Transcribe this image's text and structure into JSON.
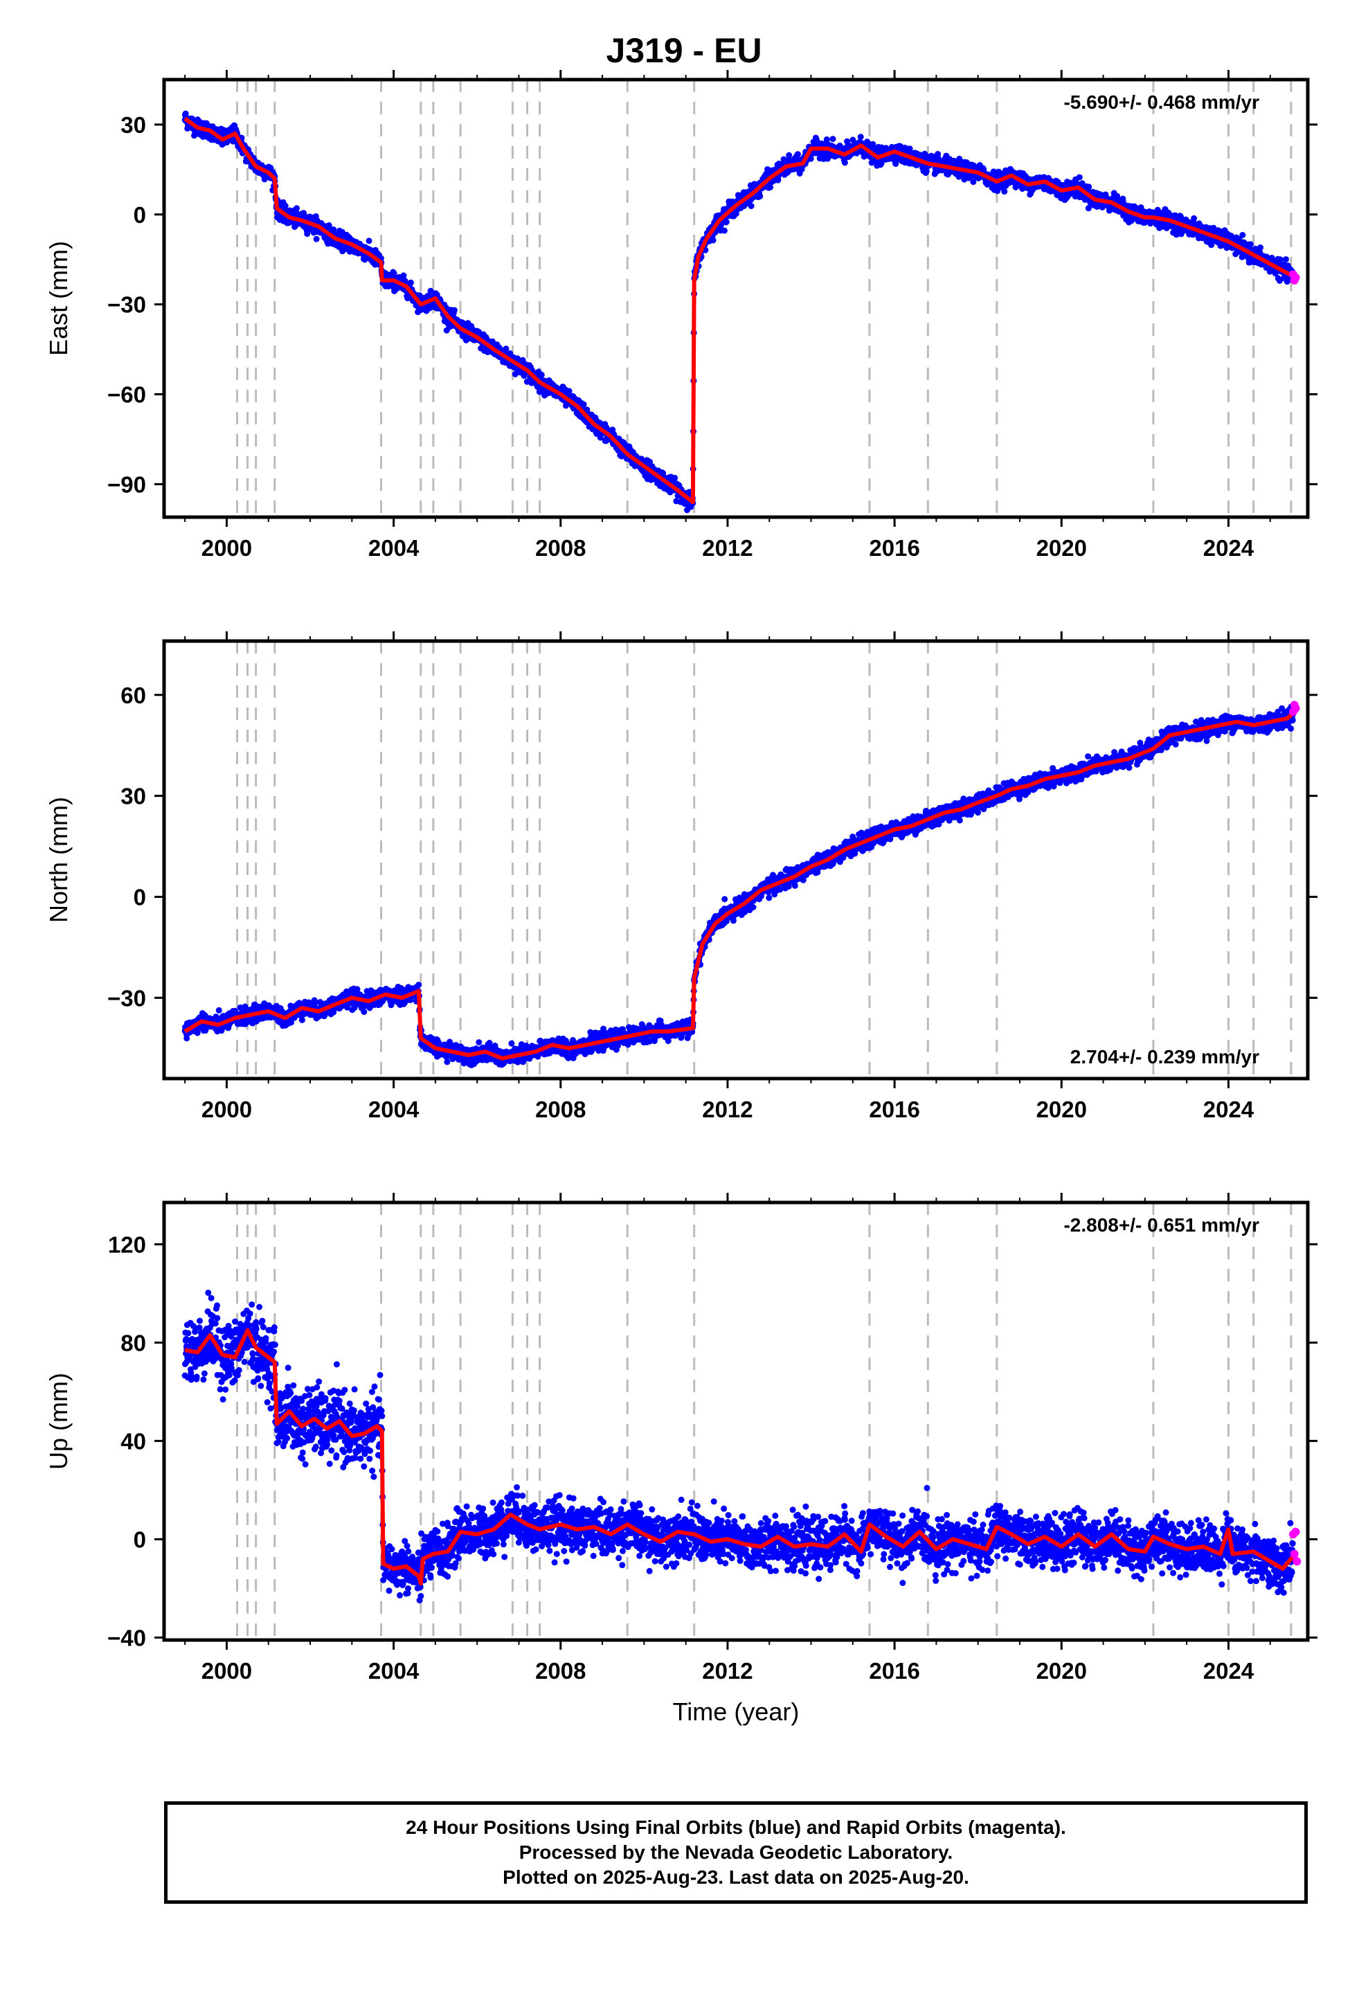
{
  "title": "J319 - EU",
  "colors": {
    "final_points": "#0000ff",
    "rapid_points": "#ff00ff",
    "model_line": "#ff0000",
    "event_lines": "#bbbbbb",
    "frame": "#000000"
  },
  "footer": {
    "line1": "24 Hour Positions Using Final Orbits (blue) and Rapid Orbits (magenta).",
    "line2": "Processed by the Nevada Geodetic Laboratory.",
    "line3": "Plotted on 2025-Aug-23. Last data on 2025-Aug-20."
  },
  "chart_data": [
    {
      "type": "scatter",
      "panel": "east",
      "ylabel": "East (mm)",
      "xlabel": "",
      "rate_text": "-5.690+/- 0.468 mm/yr",
      "rate_position": "top-right",
      "xlim": [
        1998.5,
        2025.9
      ],
      "ylim": [
        -101,
        45
      ],
      "xticks": [
        2000,
        2004,
        2008,
        2012,
        2016,
        2020,
        2024
      ],
      "yticks": [
        30,
        0,
        -30,
        -60,
        -90
      ],
      "ytick_labels": [
        "30",
        "0",
        "−30",
        "−60",
        "−90"
      ],
      "event_lines": [
        2000.25,
        2000.5,
        2000.7,
        2001.15,
        2003.7,
        2004.65,
        2004.95,
        2005.6,
        2006.85,
        2007.2,
        2007.5,
        2009.6,
        2011.2,
        2015.4,
        2016.8,
        2018.45,
        2022.2,
        2024.0,
        2024.6,
        2025.5
      ],
      "model_line": [
        [
          1999.0,
          32
        ],
        [
          1999.3,
          29
        ],
        [
          1999.6,
          28
        ],
        [
          1999.9,
          25
        ],
        [
          2000.2,
          27
        ],
        [
          2000.4,
          22
        ],
        [
          2000.7,
          16
        ],
        [
          2001.0,
          14
        ],
        [
          2001.15,
          12
        ],
        [
          2001.2,
          2
        ],
        [
          2001.5,
          -1
        ],
        [
          2001.8,
          -2
        ],
        [
          2002.2,
          -4
        ],
        [
          2002.6,
          -8
        ],
        [
          2003.0,
          -10
        ],
        [
          2003.4,
          -13
        ],
        [
          2003.7,
          -16
        ],
        [
          2003.72,
          -22
        ],
        [
          2004.0,
          -22
        ],
        [
          2004.3,
          -24
        ],
        [
          2004.65,
          -30
        ],
        [
          2005.0,
          -28
        ],
        [
          2005.3,
          -34
        ],
        [
          2005.6,
          -38
        ],
        [
          2006.0,
          -41
        ],
        [
          2006.4,
          -45
        ],
        [
          2006.85,
          -49
        ],
        [
          2007.2,
          -52
        ],
        [
          2007.5,
          -56
        ],
        [
          2008.0,
          -60
        ],
        [
          2008.4,
          -64
        ],
        [
          2008.8,
          -70
        ],
        [
          2009.2,
          -74
        ],
        [
          2009.6,
          -80
        ],
        [
          2010.0,
          -84
        ],
        [
          2010.4,
          -88
        ],
        [
          2010.8,
          -92
        ],
        [
          2011.17,
          -96
        ],
        [
          2011.2,
          -22
        ],
        [
          2011.3,
          -14
        ],
        [
          2011.5,
          -8
        ],
        [
          2011.8,
          -2
        ],
        [
          2012.2,
          3
        ],
        [
          2012.6,
          7
        ],
        [
          2013.0,
          12
        ],
        [
          2013.4,
          16
        ],
        [
          2013.8,
          17
        ],
        [
          2014.0,
          22
        ],
        [
          2014.4,
          22
        ],
        [
          2014.8,
          20
        ],
        [
          2015.2,
          23
        ],
        [
          2015.6,
          19
        ],
        [
          2016.0,
          21
        ],
        [
          2016.4,
          19
        ],
        [
          2016.8,
          17
        ],
        [
          2017.2,
          16
        ],
        [
          2017.6,
          15
        ],
        [
          2018.0,
          14
        ],
        [
          2018.45,
          11
        ],
        [
          2018.8,
          13
        ],
        [
          2019.2,
          10
        ],
        [
          2019.6,
          11
        ],
        [
          2020.0,
          8
        ],
        [
          2020.4,
          9
        ],
        [
          2020.8,
          5
        ],
        [
          2021.2,
          4
        ],
        [
          2021.6,
          1
        ],
        [
          2022.0,
          -1
        ],
        [
          2022.2,
          -1
        ],
        [
          2022.6,
          -2
        ],
        [
          2023.0,
          -4
        ],
        [
          2023.4,
          -6
        ],
        [
          2023.8,
          -8
        ],
        [
          2024.0,
          -9
        ],
        [
          2024.4,
          -12
        ],
        [
          2024.8,
          -15
        ],
        [
          2025.2,
          -18
        ],
        [
          2025.6,
          -21
        ]
      ],
      "rapid_points": [
        [
          2025.55,
          -20
        ],
        [
          2025.58,
          -22
        ],
        [
          2025.61,
          -21
        ]
      ]
    },
    {
      "type": "scatter",
      "panel": "north",
      "ylabel": "North (mm)",
      "xlabel": "",
      "rate_text": "2.704+/- 0.239 mm/yr",
      "rate_position": "bottom-right",
      "xlim": [
        1998.5,
        2025.9
      ],
      "ylim": [
        -54,
        76
      ],
      "xticks": [
        2000,
        2004,
        2008,
        2012,
        2016,
        2020,
        2024
      ],
      "yticks": [
        60,
        30,
        0,
        -30
      ],
      "ytick_labels": [
        "60",
        "30",
        "0",
        "−30"
      ],
      "event_lines": [
        2000.25,
        2000.5,
        2000.7,
        2001.15,
        2003.7,
        2004.65,
        2004.95,
        2005.6,
        2006.85,
        2007.2,
        2007.5,
        2009.6,
        2011.2,
        2015.4,
        2016.8,
        2018.45,
        2022.2,
        2024.0,
        2024.6,
        2025.5
      ],
      "model_line": [
        [
          1999.0,
          -40
        ],
        [
          1999.4,
          -37
        ],
        [
          1999.8,
          -38
        ],
        [
          2000.2,
          -36
        ],
        [
          2000.6,
          -35
        ],
        [
          2001.0,
          -34
        ],
        [
          2001.4,
          -36
        ],
        [
          2001.8,
          -33
        ],
        [
          2002.2,
          -34
        ],
        [
          2002.6,
          -32
        ],
        [
          2003.0,
          -30
        ],
        [
          2003.4,
          -31
        ],
        [
          2003.8,
          -29
        ],
        [
          2004.2,
          -30
        ],
        [
          2004.6,
          -28
        ],
        [
          2004.65,
          -42
        ],
        [
          2005.0,
          -45
        ],
        [
          2005.4,
          -46
        ],
        [
          2005.8,
          -47
        ],
        [
          2006.2,
          -46
        ],
        [
          2006.6,
          -48
        ],
        [
          2007.0,
          -47
        ],
        [
          2007.4,
          -46
        ],
        [
          2007.8,
          -44
        ],
        [
          2008.2,
          -45
        ],
        [
          2008.6,
          -44
        ],
        [
          2009.0,
          -43
        ],
        [
          2009.4,
          -42
        ],
        [
          2009.8,
          -41
        ],
        [
          2010.2,
          -40
        ],
        [
          2010.6,
          -40
        ],
        [
          2011.17,
          -39
        ],
        [
          2011.2,
          -24
        ],
        [
          2011.4,
          -14
        ],
        [
          2011.7,
          -8
        ],
        [
          2012.0,
          -5
        ],
        [
          2012.4,
          -2
        ],
        [
          2012.8,
          2
        ],
        [
          2013.2,
          4
        ],
        [
          2013.6,
          6
        ],
        [
          2014.0,
          9
        ],
        [
          2014.4,
          11
        ],
        [
          2014.8,
          14
        ],
        [
          2015.2,
          16
        ],
        [
          2015.6,
          18
        ],
        [
          2016.0,
          20
        ],
        [
          2016.4,
          21
        ],
        [
          2016.8,
          23
        ],
        [
          2017.2,
          25
        ],
        [
          2017.6,
          26
        ],
        [
          2018.0,
          28
        ],
        [
          2018.45,
          30
        ],
        [
          2018.8,
          32
        ],
        [
          2019.2,
          33
        ],
        [
          2019.6,
          35
        ],
        [
          2020.0,
          36
        ],
        [
          2020.4,
          37
        ],
        [
          2020.8,
          39
        ],
        [
          2021.2,
          40
        ],
        [
          2021.6,
          41
        ],
        [
          2022.0,
          43
        ],
        [
          2022.2,
          44
        ],
        [
          2022.6,
          48
        ],
        [
          2023.0,
          49
        ],
        [
          2023.4,
          50
        ],
        [
          2023.8,
          51
        ],
        [
          2024.2,
          52
        ],
        [
          2024.6,
          51
        ],
        [
          2025.0,
          52
        ],
        [
          2025.4,
          53
        ],
        [
          2025.6,
          55
        ]
      ],
      "rapid_points": [
        [
          2025.55,
          55
        ],
        [
          2025.58,
          57
        ],
        [
          2025.61,
          56
        ]
      ]
    },
    {
      "type": "scatter",
      "panel": "up",
      "ylabel": "Up (mm)",
      "xlabel": "Time (year)",
      "rate_text": "-2.808+/- 0.651 mm/yr",
      "rate_position": "top-right",
      "xlim": [
        1998.5,
        2025.9
      ],
      "ylim": [
        -41,
        137
      ],
      "xticks": [
        2000,
        2004,
        2008,
        2012,
        2016,
        2020,
        2024
      ],
      "yticks": [
        120,
        80,
        40,
        0,
        -40
      ],
      "ytick_labels": [
        "120",
        "80",
        "40",
        "0",
        "−40"
      ],
      "event_lines": [
        2000.25,
        2000.5,
        2000.7,
        2001.15,
        2003.7,
        2004.65,
        2004.95,
        2005.6,
        2006.85,
        2007.2,
        2007.5,
        2009.6,
        2011.2,
        2015.4,
        2016.8,
        2018.45,
        2022.2,
        2024.0,
        2024.6,
        2025.5
      ],
      "model_line": [
        [
          1999.0,
          77
        ],
        [
          1999.3,
          76
        ],
        [
          1999.6,
          83
        ],
        [
          1999.9,
          75
        ],
        [
          2000.2,
          74
        ],
        [
          2000.5,
          85
        ],
        [
          2000.7,
          78
        ],
        [
          2001.0,
          74
        ],
        [
          2001.15,
          72
        ],
        [
          2001.2,
          47
        ],
        [
          2001.5,
          52
        ],
        [
          2001.8,
          46
        ],
        [
          2002.1,
          49
        ],
        [
          2002.4,
          45
        ],
        [
          2002.7,
          48
        ],
        [
          2003.0,
          42
        ],
        [
          2003.3,
          43
        ],
        [
          2003.6,
          46
        ],
        [
          2003.72,
          44
        ],
        [
          2003.75,
          -10
        ],
        [
          2004.0,
          -12
        ],
        [
          2004.3,
          -11
        ],
        [
          2004.6,
          -15
        ],
        [
          2004.65,
          -18
        ],
        [
          2004.7,
          -8
        ],
        [
          2004.95,
          -6
        ],
        [
          2005.3,
          -5
        ],
        [
          2005.6,
          3
        ],
        [
          2006.0,
          2
        ],
        [
          2006.4,
          4
        ],
        [
          2006.8,
          10
        ],
        [
          2007.2,
          6
        ],
        [
          2007.5,
          4
        ],
        [
          2008.0,
          6
        ],
        [
          2008.4,
          4
        ],
        [
          2008.8,
          5
        ],
        [
          2009.2,
          2
        ],
        [
          2009.6,
          6
        ],
        [
          2010.0,
          2
        ],
        [
          2010.4,
          -1
        ],
        [
          2010.8,
          3
        ],
        [
          2011.2,
          2
        ],
        [
          2011.6,
          -1
        ],
        [
          2012.0,
          0
        ],
        [
          2012.4,
          -2
        ],
        [
          2012.8,
          -3
        ],
        [
          2013.2,
          1
        ],
        [
          2013.6,
          -3
        ],
        [
          2014.0,
          -2
        ],
        [
          2014.4,
          -3
        ],
        [
          2014.8,
          2
        ],
        [
          2015.2,
          -5
        ],
        [
          2015.4,
          6
        ],
        [
          2015.8,
          1
        ],
        [
          2016.2,
          -3
        ],
        [
          2016.6,
          3
        ],
        [
          2017.0,
          -4
        ],
        [
          2017.4,
          0
        ],
        [
          2017.8,
          -2
        ],
        [
          2018.2,
          -4
        ],
        [
          2018.45,
          5
        ],
        [
          2018.8,
          2
        ],
        [
          2019.2,
          -2
        ],
        [
          2019.6,
          1
        ],
        [
          2020.0,
          -3
        ],
        [
          2020.4,
          2
        ],
        [
          2020.8,
          -3
        ],
        [
          2021.2,
          2
        ],
        [
          2021.6,
          -4
        ],
        [
          2022.0,
          -5
        ],
        [
          2022.2,
          1
        ],
        [
          2022.6,
          -2
        ],
        [
          2023.0,
          -4
        ],
        [
          2023.4,
          -3
        ],
        [
          2023.8,
          -6
        ],
        [
          2024.0,
          4
        ],
        [
          2024.1,
          -6
        ],
        [
          2024.6,
          -5
        ],
        [
          2025.0,
          -9
        ],
        [
          2025.3,
          -12
        ],
        [
          2025.6,
          -6
        ]
      ],
      "rapid_points": [
        [
          2025.55,
          2
        ],
        [
          2025.58,
          -6
        ],
        [
          2025.61,
          3
        ],
        [
          2025.64,
          -9
        ]
      ]
    }
  ]
}
